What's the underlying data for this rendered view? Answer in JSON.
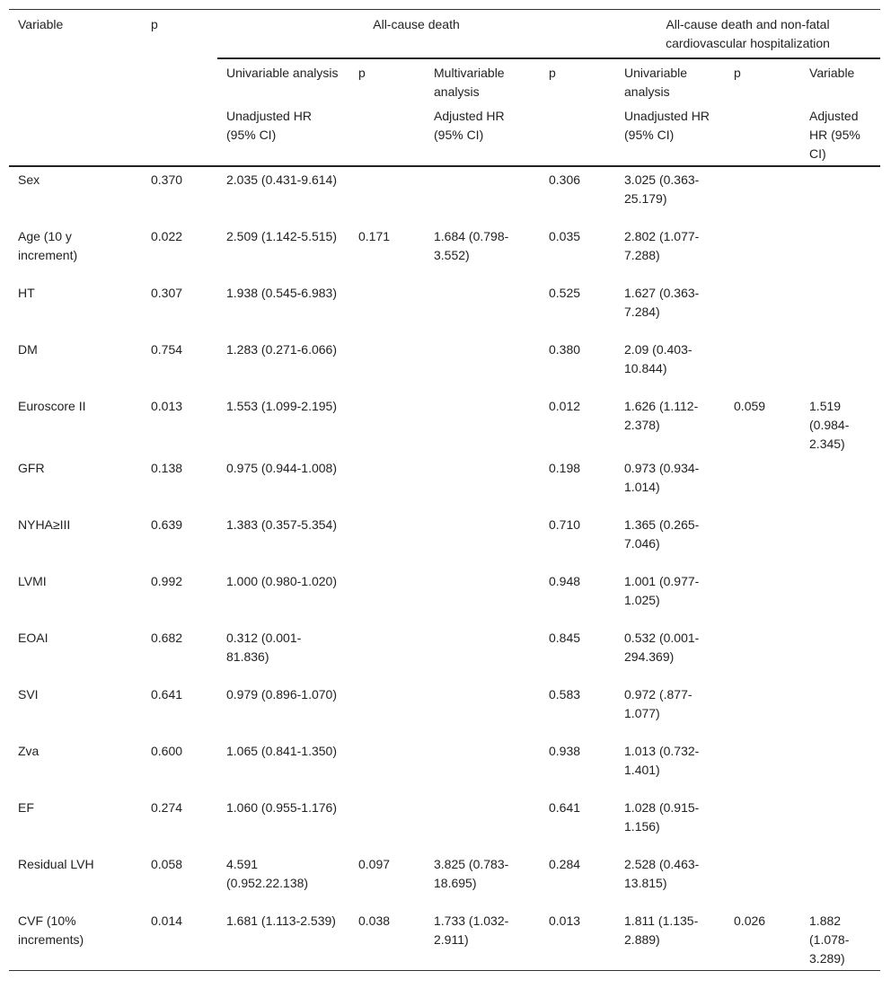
{
  "table": {
    "header": {
      "variable": "Variable",
      "p": "p",
      "group1": "All-cause death",
      "group2": "All-cause death and non-fatal cardiovascular hospitalization",
      "row2": [
        "Univariable analysis",
        "p",
        "Multivariable analysis",
        "p",
        "Univariable analysis",
        "p",
        "Variable"
      ],
      "row3": [
        "Unadjusted HR (95% CI)",
        null,
        "Adjusted HR (95% CI)",
        null,
        "Unadjusted HR (95% CI)",
        null,
        "Adjusted HR (95% CI)"
      ]
    },
    "rows": [
      [
        "Sex",
        "0.370",
        "2.035 (0.431-9.614)",
        null,
        null,
        "0.306",
        "3.025 (0.363-25.179)",
        null,
        null
      ],
      [
        "Age (10 y increment)",
        "0.022",
        "2.509 (1.142-5.515)",
        "0.171",
        "1.684 (0.798-3.552)",
        "0.035",
        "2.802 (1.077-7.288)",
        null,
        null
      ],
      [
        "HT",
        "0.307",
        "1.938 (0.545-6.983)",
        null,
        null,
        "0.525",
        "1.627 (0.363-7.284)",
        null,
        null
      ],
      [
        "DM",
        "0.754",
        "1.283 (0.271-6.066)",
        null,
        null,
        "0.380",
        "2.09 (0.403-10.844)",
        null,
        null
      ],
      [
        "Euroscore II",
        "0.013",
        "1.553 (1.099-2.195)",
        null,
        null,
        "0.012",
        "1.626 (1.112-2.378)",
        "0.059",
        "1.519 (0.984-2.345)"
      ],
      [
        "GFR",
        "0.138",
        "0.975 (0.944-1.008)",
        null,
        null,
        "0.198",
        "0.973 (0.934-1.014)",
        null,
        null
      ],
      [
        "NYHA≥III",
        "0.639",
        "1.383 (0.357-5.354)",
        null,
        null,
        "0.710",
        "1.365 (0.265-7.046)",
        null,
        null
      ],
      [
        "LVMI",
        "0.992",
        "1.000 (0.980-1.020)",
        null,
        null,
        "0.948",
        "1.001 (0.977-1.025)",
        null,
        null
      ],
      [
        "EOAI",
        "0.682",
        "0.312 (0.001-81.836)",
        null,
        null,
        "0.845",
        "0.532 (0.001-294.369)",
        null,
        null
      ],
      [
        "SVI",
        "0.641",
        "0.979 (0.896-1.070)",
        null,
        null,
        "0.583",
        "0.972 (.877-1.077)",
        null,
        null
      ],
      [
        "Zva",
        "0.600",
        "1.065 (0.841-1.350)",
        null,
        null,
        "0.938",
        "1.013 (0.732-1.401)",
        null,
        null
      ],
      [
        "EF",
        "0.274",
        "1.060 (0.955-1.176)",
        null,
        null,
        "0.641",
        "1.028 (0.915-1.156)",
        null,
        null
      ],
      [
        "Residual LVH",
        "0.058",
        "4.591 (0.952.22.138)",
        "0.097",
        "3.825 (0.783-18.695)",
        "0.284",
        "2.528 (0.463-13.815)",
        null,
        null
      ],
      [
        "CVF (10% increments)",
        "0.014",
        "1.681 (1.113-2.539)",
        "0.038",
        "1.733 (1.032-2.911)",
        "0.013",
        "1.811 (1.135-2.889)",
        "0.026",
        "1.882 (1.078-3.289)"
      ]
    ]
  }
}
